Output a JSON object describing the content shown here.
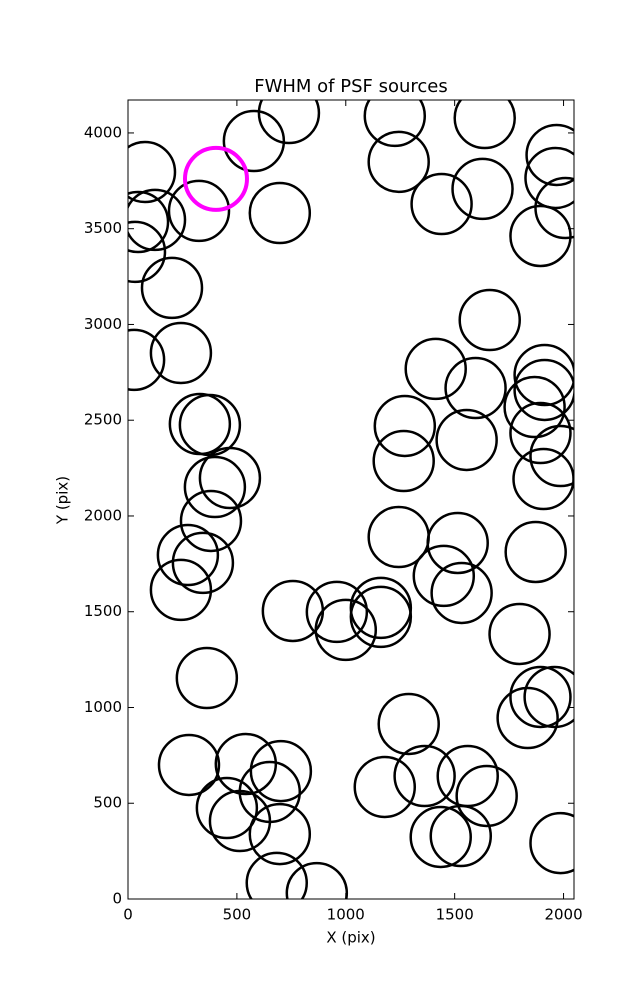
{
  "chart_data": {
    "type": "scatter",
    "title": "FWHM of PSF sources",
    "x_label": "X (pix)",
    "y_label": "Y (pix)",
    "xlim": [
      0,
      2048
    ],
    "ylim": [
      0,
      4172
    ],
    "xticks": [
      0,
      500,
      1000,
      1500,
      2000
    ],
    "yticks": [
      0,
      500,
      1000,
      1500,
      2000,
      2500,
      3000,
      3500,
      4000
    ],
    "series": [
      {
        "color": "#000000",
        "x": [
          78,
          46,
          124,
          32,
          202,
          326,
          578,
          739,
          697,
          28,
          243,
          330,
          376,
          468,
          399,
          381,
          275,
          344,
          243,
          362,
          280,
          541,
          702,
          651,
          454,
          514,
          697,
          683,
          867,
          757,
          1000,
          959,
          1161,
          1161,
          1225,
          1243,
          1638,
          1628,
          1440,
          1661,
          1894,
          1968,
          1963,
          2009,
          1413,
          1596,
          1271,
          1555,
          1266,
          1913,
          1913,
          1867,
          1894,
          1986,
          1908,
          1243,
          1514,
          1450,
          1532,
          1872,
          1798,
          1894,
          1959,
          1835,
          1289,
          1362,
          1179,
          1560,
          1647,
          1436,
          1528,
          1986
        ],
        "y": [
          3796,
          3535,
          3546,
          3379,
          3191,
          3593,
          3958,
          4104,
          3582,
          2815,
          2851,
          2480,
          2475,
          2198,
          2151,
          1974,
          1796,
          1755,
          1614,
          1154,
          700,
          705,
          668,
          559,
          475,
          407,
          339,
          84,
          31,
          1504,
          1405,
          1499,
          1520,
          1473,
          4089,
          3849,
          4078,
          3708,
          3629,
          3023,
          3462,
          3885,
          3765,
          3608,
          2768,
          2668,
          2470,
          2397,
          2287,
          2736,
          2658,
          2569,
          2433,
          2313,
          2193,
          1890,
          1859,
          1687,
          1598,
          1812,
          1384,
          1055,
          1055,
          945,
          914,
          642,
          585,
          642,
          538,
          324,
          329,
          292
        ]
      },
      {
        "color": "#ff00ff",
        "x": [
          404
        ],
        "y": [
          3760
        ]
      }
    ]
  }
}
